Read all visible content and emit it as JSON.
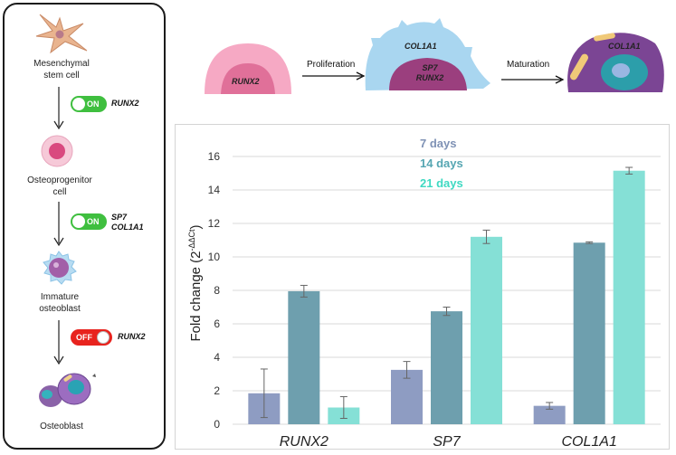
{
  "pathway": {
    "stages": [
      {
        "label_line1": "Mesenchymal",
        "label_line2": "stem cell"
      },
      {
        "label_line1": "Osteoprogenitor",
        "label_line2": "cell"
      },
      {
        "label_line1": "Immature",
        "label_line2": "osteoblast"
      },
      {
        "label_line1": "Osteoblast",
        "label_line2": ""
      }
    ],
    "switches": [
      {
        "state": "ON",
        "genes_line1": "RUNX2",
        "genes_line2": "",
        "color": "#3fbf3f"
      },
      {
        "state": "ON",
        "genes_line1": "SP7",
        "genes_line2": "COL1A1",
        "color": "#3fbf3f"
      },
      {
        "state": "OFF",
        "genes_line1": "RUNX2",
        "genes_line2": "",
        "color": "#e8231e"
      }
    ]
  },
  "differentiation": {
    "cell1_label": "RUNX2",
    "arrow1_label": "Proliferation",
    "cell2_label_top": "COL1A1",
    "cell2_label_line1": "SP7",
    "cell2_label_line2": "RUNX2",
    "arrow2_label": "Maturation",
    "cell3_label": "COL1A1"
  },
  "chart_data": {
    "type": "bar",
    "ylabel": "Fold change (2",
    "ylabel_sup": "-ΔΔCt",
    "ylabel_close": ")",
    "ylim": [
      0,
      16
    ],
    "yticks": [
      0,
      2,
      4,
      6,
      8,
      10,
      12,
      14,
      16
    ],
    "grid": true,
    "legend_position": "top-center",
    "categories": [
      "RUNX2",
      "SP7",
      "COL1A1"
    ],
    "series": [
      {
        "name": "7 days",
        "color": "#8e9cc2",
        "values": [
          1.85,
          3.25,
          1.1
        ],
        "errors": [
          1.45,
          0.5,
          0.2
        ]
      },
      {
        "name": "14 days",
        "color": "#6e9fae",
        "values": [
          7.95,
          6.75,
          10.85
        ],
        "errors": [
          0.35,
          0.25,
          0.05
        ]
      },
      {
        "name": "21 days",
        "color": "#85e0d6",
        "values": [
          1.0,
          11.2,
          15.15
        ],
        "errors": [
          0.65,
          0.4,
          0.2
        ]
      }
    ],
    "legend_colors": [
      "#7f92b5",
      "#56a6b2",
      "#3fd9c2"
    ]
  }
}
